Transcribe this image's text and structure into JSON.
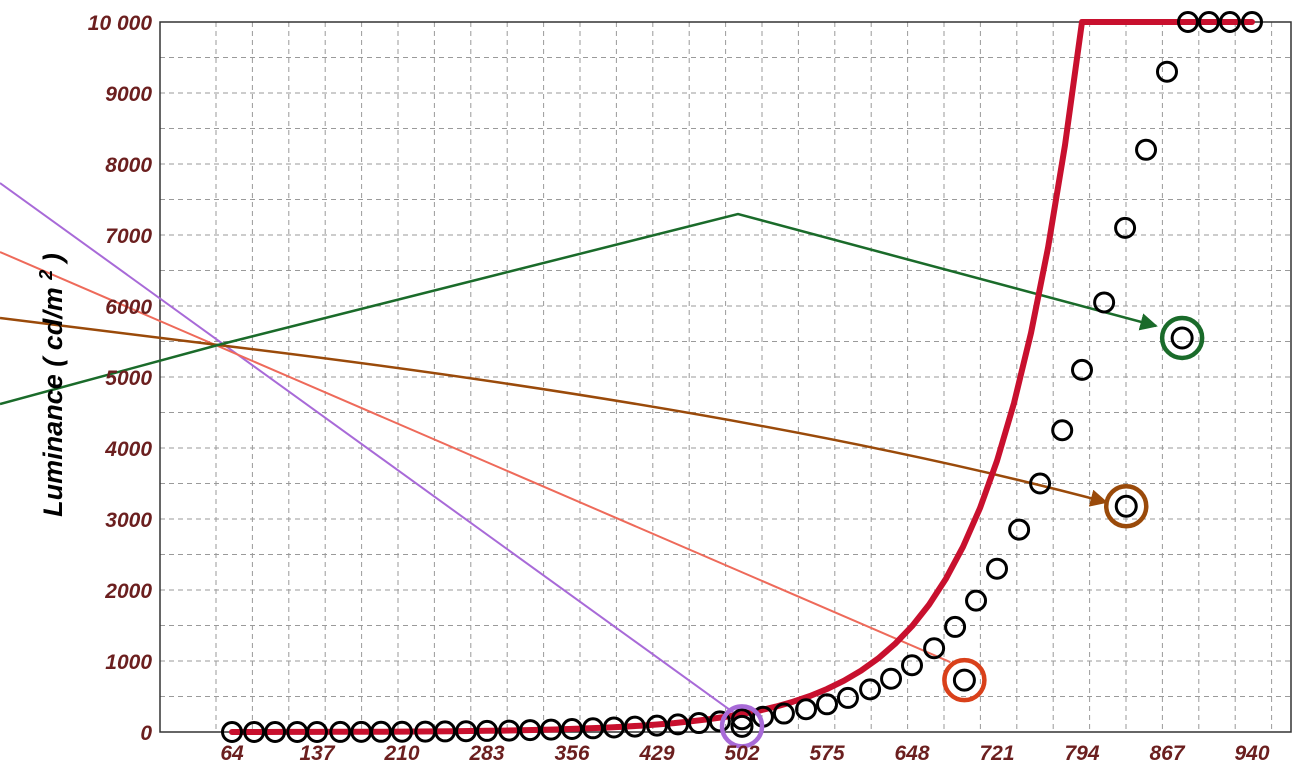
{
  "chart_data": {
    "type": "line",
    "ylabel_main": "Luminance",
    "ylabel_unit_open": "(",
    "ylabel_unit_text": "cd/m",
    "ylabel_unit_exp": "2",
    "ylabel_unit_close": ")",
    "xlabel": "",
    "xlim": [
      64,
      940
    ],
    "ylim": [
      0,
      10000
    ],
    "x_ticks": [
      64,
      137,
      210,
      283,
      356,
      429,
      502,
      575,
      648,
      721,
      794,
      867,
      940
    ],
    "y_tick_values": [
      0,
      1000,
      2000,
      3000,
      4000,
      5000,
      6000,
      7000,
      8000,
      9000,
      10000
    ],
    "y_tick_labels": [
      "0",
      "1000",
      "2000",
      "3000",
      "4000",
      "5000",
      "6000",
      "7000",
      "8000",
      "9000",
      "10 000"
    ],
    "grid": true,
    "colors": {
      "curve": "#c8102e",
      "markers": "#000000",
      "tick_labels": "#6b1f1f",
      "grid": "#9a9a9a",
      "highlight_green": "#1a6b2a",
      "highlight_brown": "#9a4a0a",
      "highlight_red": "#d9401a",
      "highlight_purple": "#a86ad8",
      "line_salmon": "#ee6a5a"
    },
    "series": [
      {
        "x": [
          64,
          78.6,
          93.2,
          107.8,
          122.4,
          137,
          151.6,
          166.2,
          180.8,
          195.4,
          210,
          224.6,
          239.2,
          253.8,
          268.4,
          283,
          297.6,
          312.2,
          326.8,
          341.4,
          356,
          370.6,
          385.2,
          399.8,
          414.4,
          429,
          443.6,
          458.2,
          472.8,
          487.4,
          502,
          516.6,
          531.2,
          545.8,
          560.4,
          575,
          589.6,
          604.2,
          618.8,
          633.4,
          648,
          662.6,
          677.2,
          691.8,
          706.4,
          721,
          735.6,
          750.2,
          764.8,
          779.4,
          794,
          808.6,
          823.2,
          837.8,
          852.4,
          867,
          881.6,
          896.2,
          910.8,
          925.4,
          940
        ],
        "y": [
          0,
          0.3,
          0.6,
          0.9,
          1.3,
          1.8,
          2.3,
          3,
          3.8,
          4.8,
          6,
          7.4,
          9.1,
          11.2,
          13.7,
          16.7,
          20.3,
          24.6,
          29.7,
          35.8,
          43.1,
          51.8,
          62,
          74.2,
          88.6,
          105.7,
          126,
          150.1,
          178.6,
          212.5,
          252.8,
          300.7,
          357.9,
          426.1,
          507.6,
          605.3,
          722.6,
          863.9,
          1034.4,
          1240.3,
          1489.7,
          1792.2,
          2160.1,
          2607.9,
          3153.8,
          3820,
          4632.1,
          5620.1,
          6818.2,
          8266.1,
          10000,
          10000,
          10000,
          10000,
          10000,
          10000,
          10000,
          10000,
          10000,
          10000,
          10000
        ]
      }
    ],
    "markers": [
      {
        "x": 64,
        "y": 0
      },
      {
        "x": 83,
        "y": 0
      },
      {
        "x": 101,
        "y": 0
      },
      {
        "x": 120,
        "y": 0
      },
      {
        "x": 137,
        "y": 0
      },
      {
        "x": 157,
        "y": 1
      },
      {
        "x": 175,
        "y": 2
      },
      {
        "x": 192,
        "y": 3
      },
      {
        "x": 210,
        "y": 4
      },
      {
        "x": 230,
        "y": 6
      },
      {
        "x": 247,
        "y": 8
      },
      {
        "x": 265,
        "y": 11
      },
      {
        "x": 283,
        "y": 15
      },
      {
        "x": 302,
        "y": 20
      },
      {
        "x": 320,
        "y": 27
      },
      {
        "x": 338,
        "y": 34
      },
      {
        "x": 356,
        "y": 42
      },
      {
        "x": 374,
        "y": 52
      },
      {
        "x": 392,
        "y": 64
      },
      {
        "x": 410,
        "y": 76
      },
      {
        "x": 429,
        "y": 90
      },
      {
        "x": 447,
        "y": 107
      },
      {
        "x": 465,
        "y": 126
      },
      {
        "x": 483,
        "y": 150
      },
      {
        "x": 502,
        "y": 180
      },
      {
        "x": 520,
        "y": 215
      },
      {
        "x": 538,
        "y": 260
      },
      {
        "x": 557,
        "y": 320
      },
      {
        "x": 575,
        "y": 390
      },
      {
        "x": 593,
        "y": 480
      },
      {
        "x": 612,
        "y": 600
      },
      {
        "x": 630,
        "y": 750
      },
      {
        "x": 648,
        "y": 940
      },
      {
        "x": 667,
        "y": 1180
      },
      {
        "x": 685,
        "y": 1480
      },
      {
        "x": 703,
        "y": 1850
      },
      {
        "x": 721,
        "y": 2300
      },
      {
        "x": 740,
        "y": 2850
      },
      {
        "x": 758,
        "y": 3500
      },
      {
        "x": 777,
        "y": 4250
      },
      {
        "x": 794,
        "y": 5100
      },
      {
        "x": 813,
        "y": 6050
      },
      {
        "x": 831,
        "y": 7100
      },
      {
        "x": 849,
        "y": 8200
      },
      {
        "x": 867,
        "y": 9300
      },
      {
        "x": 885,
        "y": 10000
      },
      {
        "x": 903,
        "y": 10000
      },
      {
        "x": 921,
        "y": 10000
      },
      {
        "x": 940,
        "y": 10000
      }
    ],
    "highlighted_points": [
      {
        "x": 502,
        "y": 80
      },
      {
        "x": 693,
        "y": 730
      },
      {
        "x": 832,
        "y": 3180
      },
      {
        "x": 880,
        "y": 5550
      }
    ]
  }
}
